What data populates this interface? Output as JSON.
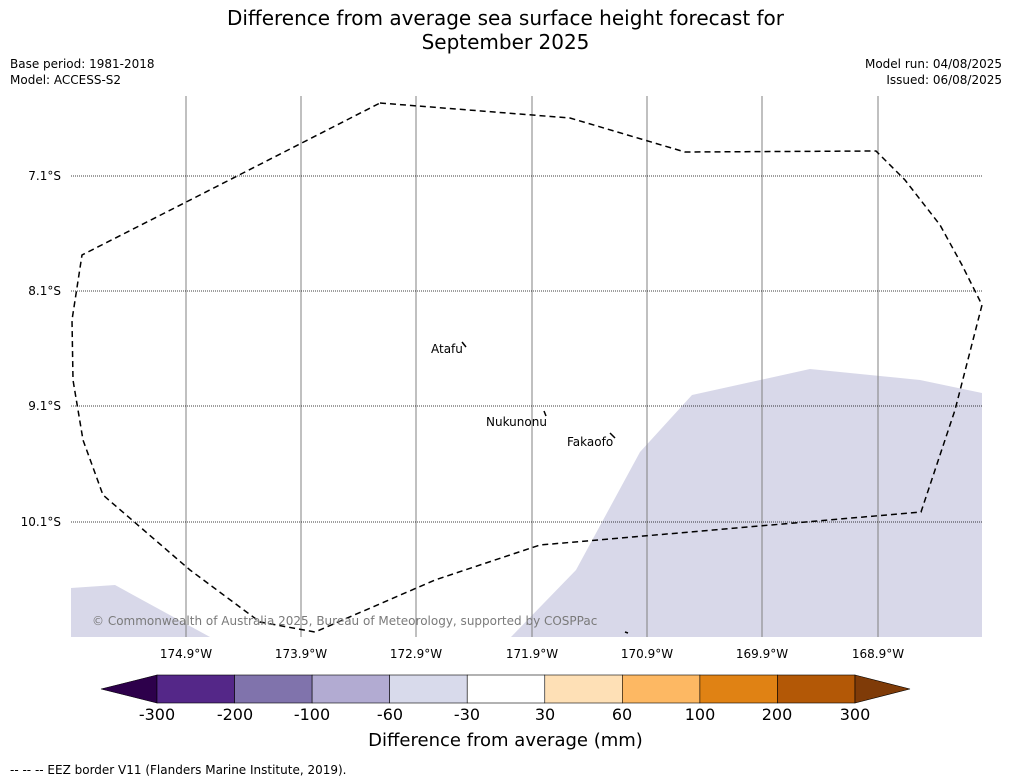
{
  "title": {
    "line1": "Difference from average sea surface height forecast for",
    "line2": "September 2025"
  },
  "meta": {
    "base_period": "Base period: 1981-2018",
    "model": "Model: ACCESS-S2",
    "model_run": "Model run: 04/08/2025",
    "issued": "Issued: 06/08/2025"
  },
  "map": {
    "latitude_labels": [
      "7.1°S",
      "8.1°S",
      "9.1°S",
      "10.1°S"
    ],
    "longitude_labels": [
      "174.9°W",
      "173.9°W",
      "172.9°W",
      "171.9°W",
      "170.9°W",
      "169.9°W",
      "168.9°W"
    ],
    "islands": [
      "Atafu",
      "Nukunonu",
      "Fakaofo"
    ],
    "copyright": "© Commonwealth of Australia 2025, Bureau of Meteorology, supported by COSPPac",
    "colors": {
      "anomaly_fill": "#d8d8e9",
      "eez_line": "#000000",
      "meridian": "#808080",
      "parallel": "#000000"
    }
  },
  "colorbar": {
    "ticks": [
      "-300",
      "-200",
      "-100",
      "-60",
      "-30",
      "30",
      "60",
      "100",
      "200",
      "300"
    ],
    "colors": [
      "#2d004b",
      "#542788",
      "#8073ac",
      "#b2abd2",
      "#d8daeb",
      "#ffffff",
      "#fee0b6",
      "#fdb863",
      "#e08214",
      "#b35806",
      "#7f3b08"
    ],
    "label": "Difference from average (mm)"
  },
  "footer": "--  --  -- EEZ border V11 (Flanders Marine Institute, 2019)."
}
